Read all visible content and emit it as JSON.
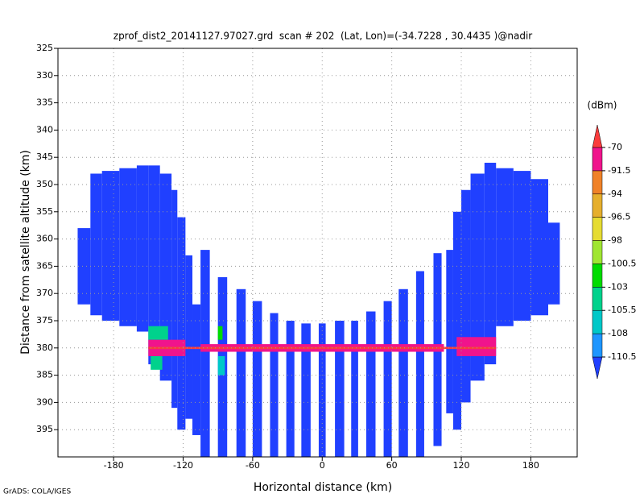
{
  "chart_data": {
    "type": "cells",
    "title": "zprof_dist2_20141127.97027.grd  scan # 202  (Lat, Lon)=(-34.7228 , 30.4435 )@nadir",
    "x_label": "Horizontal distance (km)",
    "y_label": "Distance from satellite altitude (km)",
    "footer": "GrADS: COLA/IGES",
    "xlim": [
      -228,
      220
    ],
    "xticks": [
      -180,
      -120,
      -60,
      0,
      60,
      120,
      180
    ],
    "ylim": [
      325,
      400
    ],
    "yticks": [
      325,
      330,
      335,
      340,
      345,
      350,
      355,
      360,
      365,
      370,
      375,
      380,
      385,
      390,
      395
    ],
    "y_inverted": true,
    "grid": true,
    "colorbar": {
      "label": "(dBm)",
      "levels": [
        -110.5,
        -108,
        -105.5,
        -103,
        -100.5,
        -98,
        -96.5,
        -94,
        -91.5,
        -70
      ],
      "colors": [
        "#2040ff",
        "#1e96ff",
        "#00c8c8",
        "#00d28c",
        "#00dc00",
        "#a0e632",
        "#e6dc32",
        "#e6af2d",
        "#f08228",
        "#f0148c",
        "#fa3c3c"
      ]
    },
    "cells": [
      {
        "x": [
          -211,
          -200
        ],
        "y": [
          358,
          372
        ],
        "value": -115
      },
      {
        "x": [
          -200,
          -190
        ],
        "y": [
          348,
          374
        ],
        "value": -115
      },
      {
        "x": [
          -190,
          -175
        ],
        "y": [
          347.5,
          375
        ],
        "value": -115
      },
      {
        "x": [
          -175,
          -160
        ],
        "y": [
          347,
          376
        ],
        "value": -115
      },
      {
        "x": [
          -160,
          -150
        ],
        "y": [
          346.5,
          377
        ],
        "value": -115
      },
      {
        "x": [
          -150,
          -140
        ],
        "y": [
          346.5,
          383
        ],
        "value": -115
      },
      {
        "x": [
          -140,
          -130
        ],
        "y": [
          348,
          386
        ],
        "value": -115
      },
      {
        "x": [
          -130,
          -125
        ],
        "y": [
          351,
          391
        ],
        "value": -115
      },
      {
        "x": [
          -125,
          -118
        ],
        "y": [
          356,
          395
        ],
        "value": -115
      },
      {
        "x": [
          -118,
          -112
        ],
        "y": [
          363,
          393
        ],
        "value": -115
      },
      {
        "x": [
          -112,
          -105
        ],
        "y": [
          372,
          396
        ],
        "value": -115
      },
      {
        "x": [
          -105,
          -97
        ],
        "y": [
          362,
          400
        ],
        "value": -115
      },
      {
        "x": [
          -90,
          -82
        ],
        "y": [
          367,
          400
        ],
        "value": -115
      },
      {
        "x": [
          -74,
          -66
        ],
        "y": [
          369.2,
          400
        ],
        "value": -115
      },
      {
        "x": [
          -60,
          -52
        ],
        "y": [
          371.4,
          400
        ],
        "value": -115
      },
      {
        "x": [
          -45,
          -38
        ],
        "y": [
          373.6,
          400
        ],
        "value": -115
      },
      {
        "x": [
          -31,
          -24
        ],
        "y": [
          375,
          400
        ],
        "value": -115
      },
      {
        "x": [
          -18,
          -10
        ],
        "y": [
          375.5,
          400
        ],
        "value": -115
      },
      {
        "x": [
          -3,
          3
        ],
        "y": [
          375.5,
          400
        ],
        "value": -115
      },
      {
        "x": [
          11,
          19
        ],
        "y": [
          375,
          400
        ],
        "value": -115
      },
      {
        "x": [
          25,
          31
        ],
        "y": [
          375,
          400
        ],
        "value": -115
      },
      {
        "x": [
          38,
          46
        ],
        "y": [
          373.3,
          400
        ],
        "value": -115
      },
      {
        "x": [
          53,
          60
        ],
        "y": [
          371.4,
          400
        ],
        "value": -115
      },
      {
        "x": [
          66,
          74
        ],
        "y": [
          369.2,
          400
        ],
        "value": -115
      },
      {
        "x": [
          81,
          88
        ],
        "y": [
          365.9,
          400
        ],
        "value": -115
      },
      {
        "x": [
          96,
          103
        ],
        "y": [
          362.6,
          398
        ],
        "value": -115
      },
      {
        "x": [
          107,
          113
        ],
        "y": [
          362,
          392
        ],
        "value": -115
      },
      {
        "x": [
          113,
          120
        ],
        "y": [
          355,
          395
        ],
        "value": -115
      },
      {
        "x": [
          120,
          128
        ],
        "y": [
          351,
          390
        ],
        "value": -115
      },
      {
        "x": [
          128,
          140
        ],
        "y": [
          348,
          386
        ],
        "value": -115
      },
      {
        "x": [
          140,
          150
        ],
        "y": [
          346,
          383
        ],
        "value": -115
      },
      {
        "x": [
          150,
          165
        ],
        "y": [
          347,
          376
        ],
        "value": -115
      },
      {
        "x": [
          165,
          180
        ],
        "y": [
          347.5,
          375
        ],
        "value": -115
      },
      {
        "x": [
          180,
          195
        ],
        "y": [
          349,
          374
        ],
        "value": -115
      },
      {
        "x": [
          195,
          205
        ],
        "y": [
          357,
          372
        ],
        "value": -115
      },
      {
        "x": [
          -150,
          -133
        ],
        "y": [
          376,
          378.5
        ],
        "value": -104
      },
      {
        "x": [
          -148,
          -138
        ],
        "y": [
          381.5,
          384
        ],
        "value": -104
      },
      {
        "x": [
          -90,
          -86
        ],
        "y": [
          376,
          378.5
        ],
        "value": -101
      },
      {
        "x": [
          -90,
          -84
        ],
        "y": [
          381.5,
          385
        ],
        "value": -107
      },
      {
        "x": [
          -150,
          -118
        ],
        "y": [
          378.5,
          381.5
        ],
        "value": -85
      },
      {
        "x": [
          116,
          150
        ],
        "y": [
          378,
          381.5
        ],
        "value": -85
      },
      {
        "x": [
          -105,
          105
        ],
        "y": [
          379.3,
          380.7
        ],
        "value": -85
      },
      {
        "x": [
          -150,
          150
        ],
        "y": [
          379.8,
          380.2
        ],
        "value": -65
      }
    ]
  }
}
